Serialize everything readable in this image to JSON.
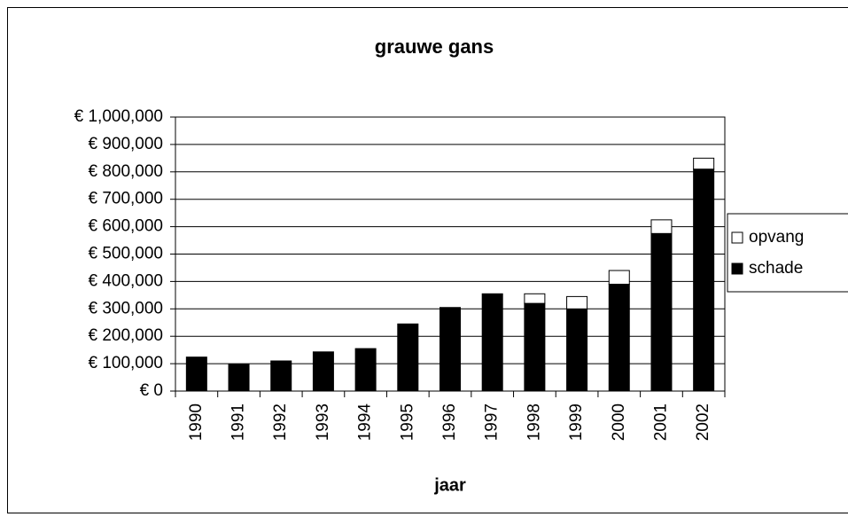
{
  "chart_data": {
    "type": "bar",
    "stacked": true,
    "title": "grauwe gans",
    "x_label": "jaar",
    "categories": [
      "1990",
      "1991",
      "1992",
      "1993",
      "1994",
      "1995",
      "1996",
      "1997",
      "1998",
      "1999",
      "2000",
      "2001",
      "2002"
    ],
    "series": [
      {
        "name": "schade",
        "color": "#000000",
        "values": [
          124000,
          97000,
          110000,
          143000,
          155000,
          245000,
          305000,
          355000,
          320000,
          300000,
          390000,
          575000,
          810000
        ]
      },
      {
        "name": "opvang",
        "color": "#ffffff",
        "values": [
          0,
          0,
          0,
          0,
          0,
          0,
          0,
          0,
          35000,
          45000,
          50000,
          50000,
          40000
        ]
      }
    ],
    "ylim": [
      0,
      1000000
    ],
    "yticks": [
      {
        "value": 0,
        "label": "€ 0"
      },
      {
        "value": 100000,
        "label": "€ 100,000"
      },
      {
        "value": 200000,
        "label": "€ 200,000"
      },
      {
        "value": 300000,
        "label": "€ 300,000"
      },
      {
        "value": 400000,
        "label": "€ 400,000"
      },
      {
        "value": 500000,
        "label": "€ 500,000"
      },
      {
        "value": 600000,
        "label": "€ 600,000"
      },
      {
        "value": 700000,
        "label": "€ 700,000"
      },
      {
        "value": 800000,
        "label": "€ 800,000"
      },
      {
        "value": 900000,
        "label": "€ 900,000"
      },
      {
        "value": 1000000,
        "label": "€ 1,000,000"
      }
    ],
    "grid": true,
    "legend": "right"
  }
}
